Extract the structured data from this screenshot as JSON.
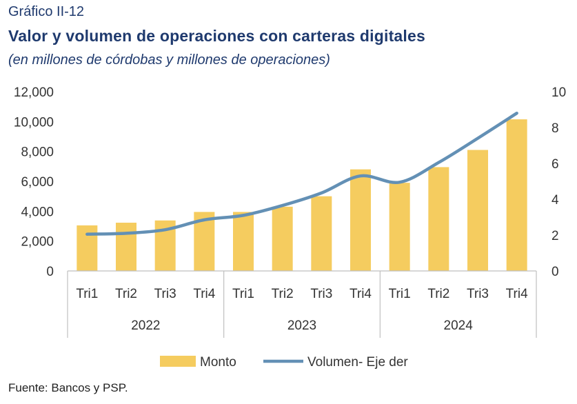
{
  "figure_label": "Gráfico II-12",
  "title": "Valor y volumen de operaciones con carteras digitales",
  "subtitle": "(en millones de córdobas y millones de operaciones)",
  "source": "Fuente: Bancos y PSP.",
  "colors": {
    "bar": "#f5cc5f",
    "line": "#6390b5",
    "axis": "#bfbfbf",
    "title": "#1f3a6e"
  },
  "chart_data": {
    "type": "bar",
    "categories": [
      "Tri1",
      "Tri2",
      "Tri3",
      "Tri4",
      "Tri1",
      "Tri2",
      "Tri3",
      "Tri4",
      "Tri1",
      "Tri2",
      "Tri3",
      "Tri4"
    ],
    "groups": [
      {
        "label": "2022",
        "count": 4
      },
      {
        "label": "2023",
        "count": 4
      },
      {
        "label": "2024",
        "count": 4
      }
    ],
    "series": [
      {
        "name": "Monto",
        "type": "bar",
        "axis": "left",
        "values": [
          3050,
          3230,
          3380,
          3950,
          3950,
          4300,
          5000,
          6800,
          5900,
          6950,
          8100,
          10150
        ]
      },
      {
        "name": "Volumen- Eje der",
        "type": "line",
        "axis": "right",
        "values": [
          2.05,
          2.1,
          2.3,
          2.85,
          3.1,
          3.65,
          4.35,
          5.3,
          4.95,
          6.05,
          7.4,
          8.8
        ]
      }
    ],
    "ylim_left": [
      0,
      12000
    ],
    "yticks_left": [
      "0",
      "2,000",
      "4,000",
      "6,000",
      "8,000",
      "10,000",
      "12,000"
    ],
    "ylim_right": [
      0,
      10
    ],
    "yticks_right": [
      "0",
      "2",
      "4",
      "6",
      "8",
      "10"
    ],
    "grid": false,
    "legend": "bottom"
  }
}
